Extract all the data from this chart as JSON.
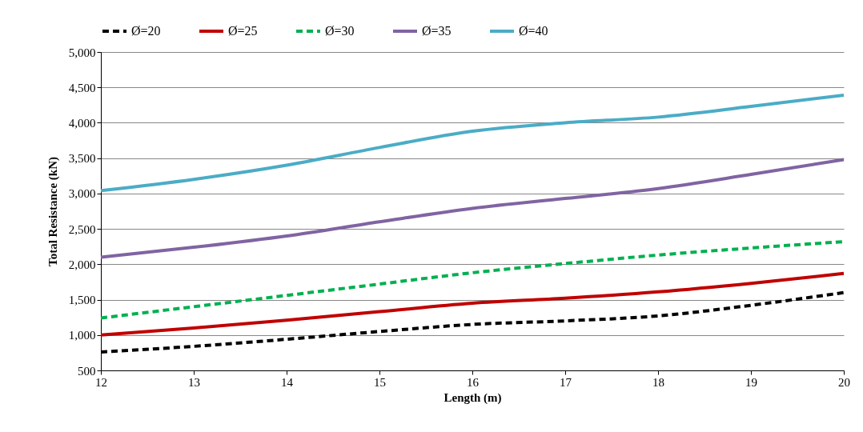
{
  "chart_data": {
    "type": "line",
    "xlabel": "Length (m)",
    "ylabel": "Total Resistance (kN)",
    "x": [
      12,
      13,
      14,
      15,
      16,
      17,
      18,
      19,
      20
    ],
    "series": [
      {
        "name": "Ø=20",
        "color": "#000000",
        "line_style": "dashed",
        "values": [
          760,
          840,
          940,
          1050,
          1150,
          1200,
          1270,
          1420,
          1600
        ]
      },
      {
        "name": "Ø=25",
        "color": "#c00000",
        "line_style": "solid",
        "values": [
          1000,
          1100,
          1210,
          1330,
          1450,
          1520,
          1610,
          1730,
          1870
        ]
      },
      {
        "name": "Ø=30",
        "color": "#00b050",
        "line_style": "dashed",
        "values": [
          1240,
          1400,
          1560,
          1720,
          1880,
          2010,
          2130,
          2230,
          2320
        ]
      },
      {
        "name": "Ø=35",
        "color": "#8064a2",
        "line_style": "solid",
        "values": [
          2100,
          2240,
          2400,
          2600,
          2790,
          2930,
          3070,
          3270,
          3480
        ]
      },
      {
        "name": "Ø=40",
        "color": "#4bacc6",
        "line_style": "solid",
        "values": [
          3040,
          3200,
          3400,
          3650,
          3880,
          4000,
          4080,
          4230,
          4390
        ]
      }
    ],
    "xlim": [
      12,
      20
    ],
    "xticks": [
      12,
      13,
      14,
      15,
      16,
      17,
      18,
      19,
      20
    ],
    "ylim": [
      500,
      5000
    ],
    "yticks": [
      {
        "value": 500,
        "label": "500"
      },
      {
        "value": 1000,
        "label": "1,000"
      },
      {
        "value": 1500,
        "label": "1,500"
      },
      {
        "value": 2000,
        "label": "2,000"
      },
      {
        "value": 2500,
        "label": "2,500"
      },
      {
        "value": 3000,
        "label": "3,000"
      },
      {
        "value": 3500,
        "label": "3,500"
      },
      {
        "value": 4000,
        "label": "4,000"
      },
      {
        "value": 4500,
        "label": "4,500"
      },
      {
        "value": 5000,
        "label": "5,000"
      }
    ],
    "grid": "y",
    "legend": "top",
    "marker": "none"
  }
}
